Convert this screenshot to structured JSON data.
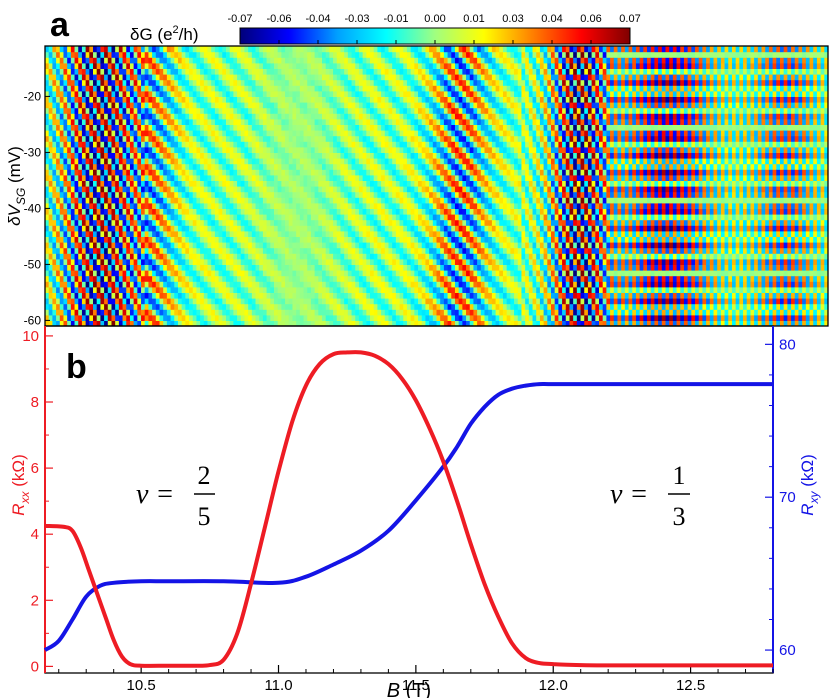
{
  "panel_labels": {
    "a": "a",
    "b": "b"
  },
  "colors": {
    "rxx": "#ee1c24",
    "rxy": "#1414e6",
    "axis": "#000000"
  },
  "colorbar": {
    "label_prefix": "δG (e",
    "label_sup": "2",
    "label_suffix": "/h)",
    "ticks": [
      "-0.07",
      "-0.06",
      "-0.04",
      "-0.03",
      "-0.01",
      "0.00",
      "0.01",
      "0.03",
      "0.04",
      "0.06",
      "0.07"
    ],
    "stops": [
      "#00007a",
      "#0000ff",
      "#00a0ff",
      "#00ffff",
      "#a0ff80",
      "#ffff00",
      "#ff8000",
      "#ff0000",
      "#800000"
    ]
  },
  "chart_data": [
    {
      "type": "heatmap",
      "panel": "a",
      "xlim": [
        10.15,
        12.8
      ],
      "ylabel_pre": "δV",
      "ylabel_sub": "SG",
      "ylabel_post": " (mV)",
      "ylim": [
        -61,
        -11
      ],
      "yticks": [
        -20,
        -30,
        -40,
        -50,
        -60
      ],
      "ytick_labels": [
        "-20",
        "-30",
        "-40",
        "-50",
        "-60"
      ],
      "clim": [
        -0.07,
        0.07
      ]
    },
    {
      "type": "line",
      "panel": "b",
      "xlabel_var": "B",
      "xlabel_unit": " (T)",
      "xlim": [
        10.15,
        12.8
      ],
      "xticks": [
        10.5,
        11.0,
        11.5,
        12.0,
        12.5
      ],
      "xtick_labels": [
        "10.5",
        "11.0",
        "11.5",
        "12.0",
        "12.5"
      ],
      "left_axis": {
        "label_var": "R",
        "label_sub": "xx",
        "label_unit": " (kΩ)",
        "ylim": [
          -0.2,
          10.3
        ],
        "yticks": [
          0,
          2,
          4,
          6,
          8,
          10
        ],
        "ytick_labels": [
          "0",
          "2",
          "4",
          "6",
          "8",
          "10"
        ]
      },
      "right_axis": {
        "label_var": "R",
        "label_sub": "xy",
        "label_unit": " (kΩ)",
        "ylim": [
          58.5,
          81.2
        ],
        "yticks": [
          60,
          70,
          80
        ],
        "ytick_labels": [
          "60",
          "70",
          "80"
        ]
      },
      "series": [
        {
          "name": "Rxx",
          "axis": "left",
          "x": [
            10.15,
            10.22,
            10.25,
            10.28,
            10.31,
            10.34,
            10.37,
            10.4,
            10.43,
            10.46,
            10.5,
            10.6,
            10.7,
            10.75,
            10.8,
            10.85,
            10.9,
            10.95,
            11.0,
            11.05,
            11.1,
            11.15,
            11.2,
            11.25,
            11.3,
            11.35,
            11.4,
            11.45,
            11.5,
            11.55,
            11.6,
            11.65,
            11.7,
            11.75,
            11.8,
            11.85,
            11.9,
            11.95,
            12.0,
            12.05,
            12.2,
            12.5,
            12.8
          ],
          "y": [
            4.25,
            4.22,
            4.1,
            3.6,
            2.9,
            2.2,
            1.5,
            0.8,
            0.3,
            0.07,
            0.02,
            0.02,
            0.02,
            0.04,
            0.2,
            1.0,
            2.5,
            4.2,
            5.9,
            7.4,
            8.5,
            9.15,
            9.45,
            9.5,
            9.5,
            9.4,
            9.15,
            8.7,
            8.05,
            7.2,
            6.2,
            5.0,
            3.7,
            2.5,
            1.5,
            0.7,
            0.25,
            0.1,
            0.07,
            0.05,
            0.03,
            0.03,
            0.03
          ]
        },
        {
          "name": "Rxy",
          "axis": "right",
          "x": [
            10.15,
            10.2,
            10.25,
            10.3,
            10.35,
            10.4,
            10.5,
            10.6,
            10.8,
            11.0,
            11.1,
            11.2,
            11.3,
            11.4,
            11.5,
            11.6,
            11.65,
            11.7,
            11.75,
            11.8,
            11.85,
            11.9,
            11.95,
            12.0,
            12.2,
            12.5,
            12.8
          ],
          "y": [
            60.0,
            60.6,
            62.0,
            63.5,
            64.2,
            64.4,
            64.5,
            64.5,
            64.5,
            64.4,
            64.8,
            65.6,
            66.5,
            67.8,
            69.8,
            72.0,
            73.3,
            74.8,
            75.9,
            76.7,
            77.1,
            77.3,
            77.4,
            77.4,
            77.4,
            77.4,
            77.4
          ]
        }
      ],
      "annotations": [
        {
          "prefix": "ν =",
          "numerator": "2",
          "denominator": "5"
        },
        {
          "prefix": "ν =",
          "numerator": "1",
          "denominator": "3"
        }
      ]
    }
  ]
}
